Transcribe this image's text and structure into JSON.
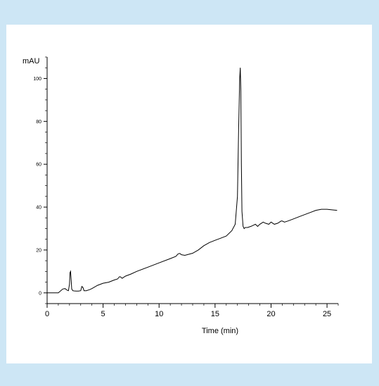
{
  "chart_data": {
    "type": "line",
    "title": "",
    "xlabel": "Time (min)",
    "ylabel": "mAU",
    "xlim": [
      0,
      26
    ],
    "ylim": [
      -5,
      110
    ],
    "x_ticks": [
      0,
      5,
      10,
      15,
      20,
      25
    ],
    "y_ticks": [
      0,
      20,
      40,
      60,
      80,
      100
    ],
    "x_tick_labels": [
      "0",
      "5",
      "10",
      "15",
      "20",
      "25"
    ],
    "y_tick_labels": [
      "0",
      "20",
      "40",
      "60",
      "80",
      "100"
    ],
    "grid": false,
    "legend": "none",
    "line_color": "#000000",
    "background": "#ffffff",
    "border_color": "#cde6f5",
    "series": [
      {
        "x": [
          0,
          1.0,
          1.4,
          1.6,
          1.8,
          1.9,
          2.0,
          2.05,
          2.1,
          2.15,
          2.2,
          2.3,
          2.4,
          2.6,
          2.8,
          3.0,
          3.1,
          3.2,
          3.3,
          3.5,
          3.8,
          4.0,
          4.5,
          5.0,
          5.5,
          6.0,
          6.3,
          6.45,
          6.55,
          6.7,
          7.0,
          7.5,
          8.0,
          9.0,
          10.0,
          11.0,
          11.5,
          11.7,
          11.85,
          12.0,
          12.3,
          13.0,
          13.5,
          14.0,
          14.5,
          15.0,
          15.5,
          16.0,
          16.5,
          16.8,
          17.0,
          17.1,
          17.2,
          17.25,
          17.3,
          17.35,
          17.4,
          17.5,
          17.6,
          17.7,
          17.9,
          18.2,
          18.4,
          18.6,
          18.8,
          19.0,
          19.3,
          19.5,
          19.8,
          20.0,
          20.3,
          20.6,
          20.9,
          21.0,
          21.2,
          21.5,
          22.0,
          22.5,
          23.0,
          23.5,
          24.0,
          24.5,
          25.0,
          25.5,
          25.9
        ],
        "y": [
          0,
          0,
          1.8,
          2.0,
          1.2,
          1.0,
          4.0,
          9.5,
          10.0,
          6.0,
          1.8,
          1.0,
          0.9,
          0.8,
          0.8,
          1.0,
          3.0,
          2.5,
          1.0,
          1.0,
          1.5,
          2.0,
          3.5,
          4.5,
          5.0,
          6.0,
          6.5,
          7.5,
          7.5,
          6.8,
          7.8,
          8.8,
          10.0,
          12.0,
          14.0,
          16.0,
          17.0,
          18.2,
          18.4,
          17.8,
          17.5,
          18.5,
          20.0,
          22.0,
          23.5,
          24.5,
          25.5,
          26.5,
          29.0,
          32.0,
          45.0,
          75.0,
          100.0,
          105.0,
          95.0,
          60.0,
          38.0,
          31.0,
          30.0,
          30.5,
          30.5,
          31.0,
          31.5,
          32.0,
          31.0,
          32.0,
          33.0,
          32.5,
          32.0,
          33.0,
          32.0,
          32.5,
          33.5,
          33.5,
          33.0,
          33.5,
          34.5,
          35.5,
          36.5,
          37.5,
          38.5,
          39.0,
          39.0,
          38.7,
          38.5
        ]
      }
    ]
  }
}
